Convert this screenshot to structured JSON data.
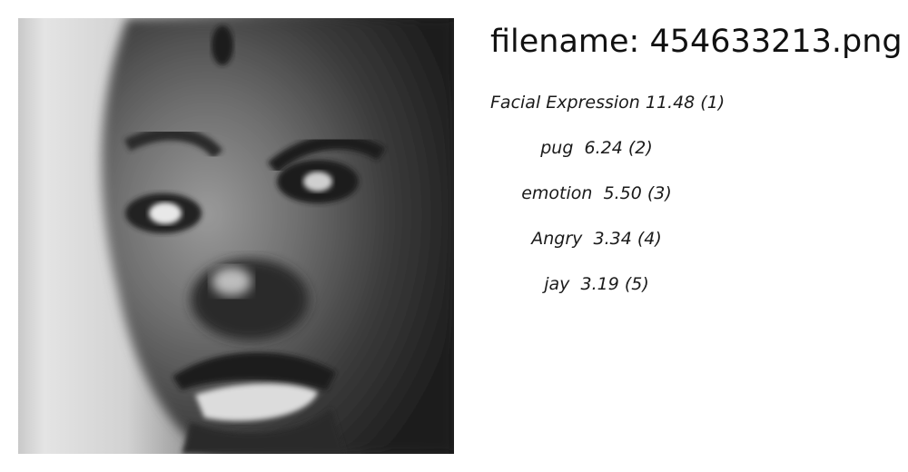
{
  "file": {
    "prefix": "filename: ",
    "name": "454633213.png"
  },
  "labels": [
    {
      "text": "Facial Expression 11.48 (1)"
    },
    {
      "text": "pug  6.24 (2)"
    },
    {
      "text": "emotion  5.50 (3)"
    },
    {
      "text": "Angry  3.34 (4)"
    },
    {
      "text": "jay  3.19 (5)"
    }
  ]
}
